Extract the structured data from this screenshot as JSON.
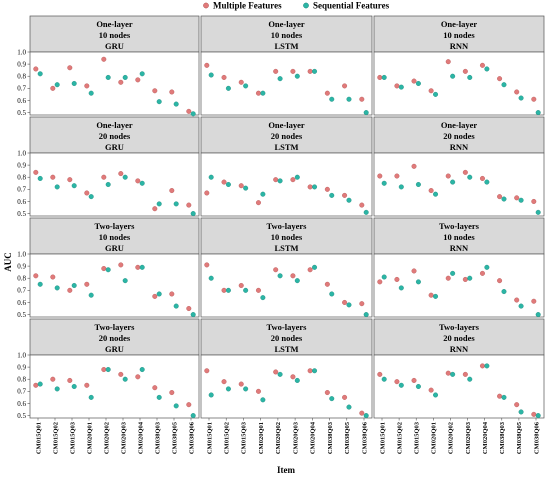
{
  "chart_data": {
    "type": "scatter",
    "ylabel": "AUC",
    "xlabel": "Item",
    "ylim": [
      0.48,
      1.0
    ],
    "yticks": [
      "0.5",
      "0.6",
      "0.7",
      "0.8",
      "0.9",
      "1.0"
    ],
    "categories": [
      "CM015Q01",
      "CM015Q02",
      "CM015Q03",
      "CM020Q01",
      "CM020Q02",
      "CM020Q03",
      "CM020Q04",
      "CM038Q03",
      "CM038Q05",
      "CM038Q06"
    ],
    "legend": {
      "placement": "top-center",
      "entries": [
        {
          "name": "Multiple Features",
          "color": "#e07a7a"
        },
        {
          "name": "Sequential Features",
          "color": "#2bb5a5"
        }
      ]
    },
    "series_colors": {
      "multiple": "#e07a7a",
      "sequential": "#2bb5a5"
    },
    "panels": [
      {
        "strip": [
          "One-layer",
          "10 nodes",
          "GRU"
        ],
        "multiple": [
          0.86,
          0.7,
          0.87,
          0.72,
          0.94,
          0.75,
          0.77,
          0.68,
          0.67,
          0.51
        ],
        "sequential": [
          0.82,
          0.73,
          0.74,
          0.66,
          0.79,
          0.79,
          0.82,
          0.59,
          0.57,
          0.49
        ]
      },
      {
        "strip": [
          "One-layer",
          "10 nodes",
          "LSTM"
        ],
        "multiple": [
          0.89,
          0.79,
          0.75,
          0.66,
          0.84,
          0.84,
          0.84,
          0.66,
          0.72,
          0.61
        ],
        "sequential": [
          0.81,
          0.7,
          0.72,
          0.66,
          0.78,
          0.8,
          0.84,
          0.61,
          0.61,
          0.5
        ]
      },
      {
        "strip": [
          "One-layer",
          "10 nodes",
          "RNN"
        ],
        "multiple": [
          0.79,
          0.72,
          0.76,
          0.68,
          0.92,
          0.84,
          0.89,
          0.78,
          0.67,
          0.61
        ],
        "sequential": [
          0.79,
          0.71,
          0.74,
          0.65,
          0.8,
          0.79,
          0.86,
          0.73,
          0.62,
          0.5
        ]
      },
      {
        "strip": [
          "One-layer",
          "20 nodes",
          "GRU"
        ],
        "multiple": [
          0.84,
          0.8,
          0.78,
          0.67,
          0.8,
          0.83,
          0.77,
          0.54,
          0.69,
          0.57
        ],
        "sequential": [
          0.79,
          0.72,
          0.73,
          0.64,
          0.74,
          0.8,
          0.75,
          0.58,
          0.58,
          0.5
        ]
      },
      {
        "strip": [
          "One-layer",
          "20 nodes",
          "LSTM"
        ],
        "multiple": [
          0.67,
          0.76,
          0.73,
          0.59,
          0.78,
          0.78,
          0.72,
          0.7,
          0.65,
          0.57
        ],
        "sequential": [
          0.8,
          0.74,
          0.71,
          0.66,
          0.77,
          0.8,
          0.72,
          0.65,
          0.61,
          0.51
        ]
      },
      {
        "strip": [
          "One-layer",
          "20 nodes",
          "RNN"
        ],
        "multiple": [
          0.81,
          0.81,
          0.89,
          0.69,
          0.81,
          0.84,
          0.79,
          0.64,
          0.63,
          0.6
        ],
        "sequential": [
          0.75,
          0.72,
          0.74,
          0.66,
          0.76,
          0.8,
          0.76,
          0.62,
          0.61,
          0.51
        ]
      },
      {
        "strip": [
          "Two-layers",
          "10 nodes",
          "GRU"
        ],
        "multiple": [
          0.82,
          0.81,
          0.7,
          0.75,
          0.88,
          0.91,
          0.89,
          0.65,
          0.67,
          0.55
        ],
        "sequential": [
          0.75,
          0.72,
          0.74,
          0.66,
          0.87,
          0.78,
          0.89,
          0.67,
          0.57,
          0.5
        ]
      },
      {
        "strip": [
          "Two-layers",
          "10 nodes",
          "LSTM"
        ],
        "multiple": [
          0.91,
          0.7,
          0.74,
          0.7,
          0.87,
          0.82,
          0.87,
          0.75,
          0.6,
          0.59
        ],
        "sequential": [
          0.8,
          0.7,
          0.7,
          0.64,
          0.82,
          0.78,
          0.89,
          0.67,
          0.58,
          0.5
        ]
      },
      {
        "strip": [
          "Two-layers",
          "10 nodes",
          "RNN"
        ],
        "multiple": [
          0.77,
          0.79,
          0.86,
          0.66,
          0.8,
          0.79,
          0.84,
          0.78,
          0.62,
          0.61
        ],
        "sequential": [
          0.81,
          0.72,
          0.77,
          0.65,
          0.84,
          0.8,
          0.89,
          0.69,
          0.57,
          0.5
        ]
      },
      {
        "strip": [
          "Two-layers",
          "20 nodes",
          "GRU"
        ],
        "multiple": [
          0.75,
          0.8,
          0.79,
          0.75,
          0.88,
          0.84,
          0.82,
          0.73,
          0.69,
          0.59
        ],
        "sequential": [
          0.76,
          0.72,
          0.74,
          0.65,
          0.88,
          0.8,
          0.88,
          0.65,
          0.58,
          0.5
        ]
      },
      {
        "strip": [
          "Two-layers",
          "20 nodes",
          "LSTM"
        ],
        "multiple": [
          0.87,
          0.78,
          0.76,
          0.7,
          0.86,
          0.82,
          0.87,
          0.69,
          0.65,
          0.52
        ],
        "sequential": [
          0.67,
          0.72,
          0.72,
          0.63,
          0.84,
          0.79,
          0.87,
          0.64,
          0.57,
          0.5
        ]
      },
      {
        "strip": [
          "Two-layers",
          "20 nodes",
          "RNN"
        ],
        "multiple": [
          0.84,
          0.78,
          0.79,
          0.71,
          0.85,
          0.84,
          0.91,
          0.66,
          0.59,
          0.51
        ],
        "sequential": [
          0.8,
          0.75,
          0.74,
          0.67,
          0.84,
          0.8,
          0.91,
          0.65,
          0.53,
          0.5
        ]
      }
    ]
  }
}
